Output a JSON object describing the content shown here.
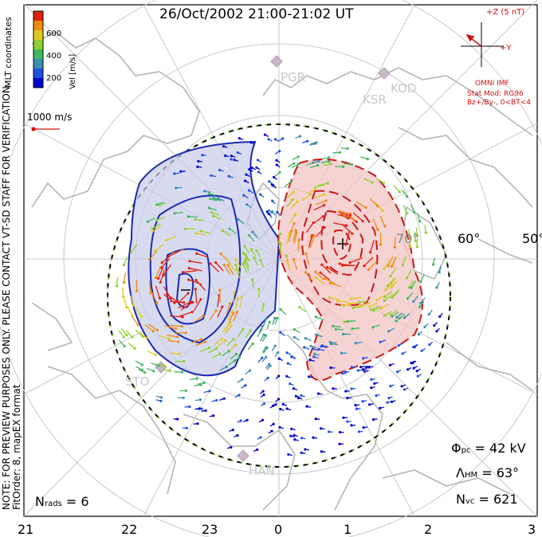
{
  "title": "26/Oct/2002 21:00-21:02 UT",
  "imf": {
    "z_label": "+Z (5 nT)",
    "y_label": "+Y",
    "source": "OMNI IMF",
    "stat_model": "Stat Mod: RG96",
    "stat_condition": "Bz+/By-, 0<BT<4"
  },
  "colorbar": {
    "title": "Vel [m/s]",
    "coords": "MLT coordinates",
    "ticks": [
      "600",
      "400",
      "200"
    ],
    "colors": [
      "#0000d0",
      "#2050e0",
      "#3a8fb0",
      "#40b860",
      "#90d030",
      "#e0c820",
      "#f08a10",
      "#e02010"
    ]
  },
  "reference_vector": "1000 m/s",
  "side_note": "NOTE: FOR PREVIEW PURPOSES ONLY. PLEASE CONTACT VT-SD STAFF FOR VERIFICATION.",
  "fit_order": "FitOrder: 8, mapEX format",
  "stats": {
    "phi_sym": "Φ",
    "phi_sub": "pc",
    "phi_val": " = 42 kV",
    "lambda_sym": "Λ",
    "lambda_sub": "HM",
    "lambda_val": " = 63°",
    "nvc_sym": "N",
    "nvc_sub": "vc",
    "nvc_val": " = 621",
    "nrads_sym": "N",
    "nrads_sub": "rads",
    "nrads_val": " = 6"
  },
  "lat_labels": [
    "60°",
    "50°",
    "70°"
  ],
  "mlt_labels": [
    "21",
    "22",
    "23",
    "0",
    "1",
    "2",
    "3"
  ],
  "stations": [
    "PGR",
    "KSR",
    "KOD",
    "STO",
    "HAN"
  ],
  "colors": {
    "negative_cell": "#1a2ab0",
    "positive_cell": "#c81818",
    "grid": "#c8c8c8",
    "coast": "#b4b4b4"
  }
}
